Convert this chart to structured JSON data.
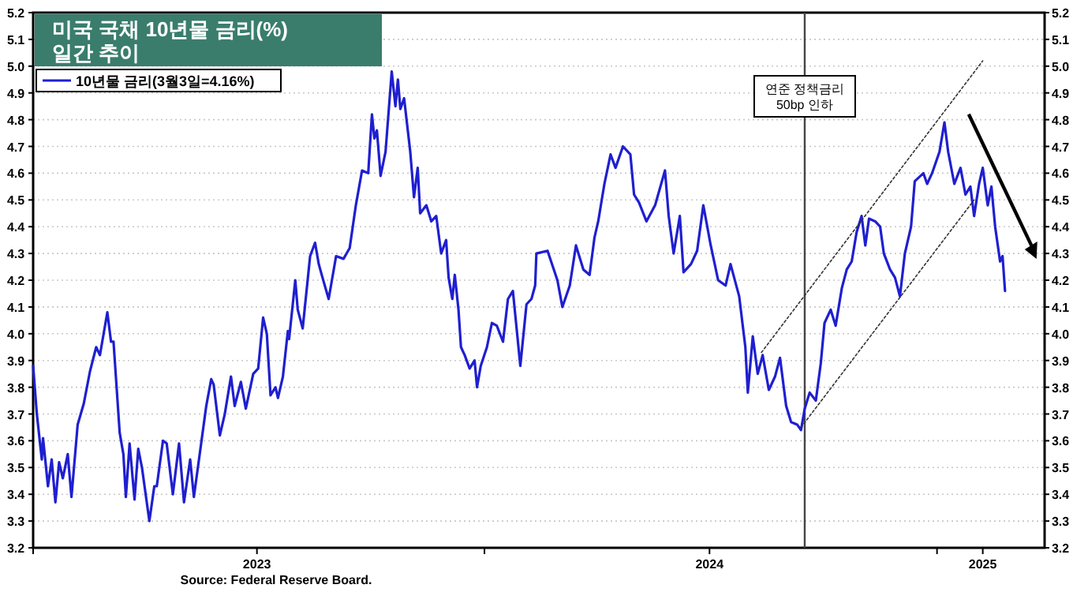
{
  "chart_data": {
    "type": "line",
    "title": "미국 국채 10년물 금리(%)",
    "subtitle": "일간 추이",
    "xlim": [
      "2023-01-01",
      "2025-03-29"
    ],
    "xticks": [
      {
        "value": "2023-01-01",
        "label": null
      },
      {
        "value": "2023-07-01",
        "label": "2023"
      },
      {
        "value": "2024-01-01",
        "label": null
      },
      {
        "value": "2024-07-01",
        "label": "2024"
      },
      {
        "value": "2025-01-01",
        "label": null
      },
      {
        "value": "2025-02-07",
        "label": "2025"
      }
    ],
    "ylim": [
      3.2,
      5.2
    ],
    "yticks": [
      3.2,
      3.3,
      3.4,
      3.5,
      3.6,
      3.7,
      3.8,
      3.9,
      {
        "value": 4,
        "label": "4.0"
      },
      4.1,
      4.2,
      4.3,
      4.4,
      4.5,
      4.6,
      4.7,
      4.8,
      4.9,
      {
        "value": 5,
        "label": "5.0"
      },
      5.1,
      5.2
    ],
    "y2lim": [
      3.2,
      5.2
    ],
    "y2ticks": [
      3.2,
      3.3,
      3.4,
      3.5,
      3.6,
      3.7,
      3.8,
      3.9,
      {
        "value": 4,
        "label": "4.0"
      },
      4.1,
      4.2,
      4.3,
      4.4,
      4.5,
      4.6,
      4.7,
      4.8,
      4.9,
      {
        "value": 5,
        "label": "5.0"
      },
      5.1,
      5.2
    ],
    "grid": "y",
    "legend": "top left",
    "series": [
      {
        "name": "10년물 금리(3월3일=4.16%)",
        "color": "#1f1fd0",
        "x": [
          "2023-01-01",
          "2023-01-04",
          "2023-01-08",
          "2023-01-09",
          "2023-01-13",
          "2023-01-16",
          "2023-01-19",
          "2023-01-22",
          "2023-01-25",
          "2023-01-29",
          "2023-02-01",
          "2023-02-06",
          "2023-02-11",
          "2023-02-16",
          "2023-02-21",
          "2023-02-24",
          "2023-03-02",
          "2023-03-05",
          "2023-03-07",
          "2023-03-12",
          "2023-03-15",
          "2023-03-17",
          "2023-03-20",
          "2023-03-24",
          "2023-03-27",
          "2023-03-30",
          "2023-04-05",
          "2023-04-09",
          "2023-04-11",
          "2023-04-16",
          "2023-04-19",
          "2023-04-24",
          "2023-04-29",
          "2023-05-03",
          "2023-05-08",
          "2023-05-11",
          "2023-05-16",
          "2023-05-21",
          "2023-05-25",
          "2023-05-27",
          "2023-06-01",
          "2023-06-05",
          "2023-06-10",
          "2023-06-13",
          "2023-06-18",
          "2023-06-22",
          "2023-06-28",
          "2023-07-02",
          "2023-07-06",
          "2023-07-09",
          "2023-07-12",
          "2023-07-16",
          "2023-07-18",
          "2023-07-22",
          "2023-07-26",
          "2023-07-27",
          "2023-08-01",
          "2023-08-03",
          "2023-08-07",
          "2023-08-13",
          "2023-08-17",
          "2023-08-20",
          "2023-08-23",
          "2023-08-28",
          "2023-09-03",
          "2023-09-09",
          "2023-09-14",
          "2023-09-19",
          "2023-09-24",
          "2023-09-29",
          "2023-10-02",
          "2023-10-04",
          "2023-10-06",
          "2023-10-09",
          "2023-10-13",
          "2023-10-18",
          "2023-10-21",
          "2023-10-23",
          "2023-10-25",
          "2023-10-28",
          "2023-11-02",
          "2023-11-05",
          "2023-11-08",
          "2023-11-10",
          "2023-11-15",
          "2023-11-19",
          "2023-11-23",
          "2023-11-27",
          "2023-12-01",
          "2023-12-03",
          "2023-12-06",
          "2023-12-08",
          "2023-12-11",
          "2023-12-13",
          "2023-12-16",
          "2023-12-20",
          "2023-12-24",
          "2023-12-26",
          "2023-12-29",
          "2024-01-03",
          "2024-01-07",
          "2024-01-11",
          "2024-01-16",
          "2024-01-20",
          "2024-01-24",
          "2024-01-30",
          "2024-02-04",
          "2024-02-08",
          "2024-02-11",
          "2024-02-12",
          "2024-02-21",
          "2024-02-29",
          "2024-03-04",
          "2024-03-10",
          "2024-03-15",
          "2024-03-21",
          "2024-03-26",
          "2024-03-30",
          "2024-04-02",
          "2024-04-07",
          "2024-04-12",
          "2024-04-16",
          "2024-04-22",
          "2024-04-28",
          "2024-05-01",
          "2024-05-05",
          "2024-05-11",
          "2024-05-18",
          "2024-05-26",
          "2024-05-29",
          "2024-06-02",
          "2024-06-07",
          "2024-06-10",
          "2024-06-16",
          "2024-06-21",
          "2024-06-26",
          "2024-07-02",
          "2024-07-08",
          "2024-07-14",
          "2024-07-18",
          "2024-07-25",
          "2024-07-30",
          "2024-08-01",
          "2024-08-05",
          "2024-08-09",
          "2024-08-13",
          "2024-08-18",
          "2024-08-23",
          "2024-08-27",
          "2024-09-01",
          "2024-09-05",
          "2024-09-10",
          "2024-09-13",
          "2024-09-16",
          "2024-09-20",
          "2024-09-25",
          "2024-09-29",
          "2024-10-02",
          "2024-10-07",
          "2024-10-11",
          "2024-10-16",
          "2024-10-20",
          "2024-10-24",
          "2024-10-28",
          "2024-11-01",
          "2024-11-04",
          "2024-11-07",
          "2024-11-12",
          "2024-11-16",
          "2024-11-19",
          "2024-11-24",
          "2024-11-28",
          "2024-12-02",
          "2024-12-06",
          "2024-12-11",
          "2024-12-14",
          "2024-12-21",
          "2024-12-24",
          "2024-12-28",
          "2025-01-03",
          "2025-01-07",
          "2025-01-10",
          "2025-01-15",
          "2025-01-20",
          "2025-01-24",
          "2025-01-28",
          "2025-01-31",
          "2025-02-04",
          "2025-02-07",
          "2025-02-11",
          "2025-02-14",
          "2025-02-17",
          "2025-02-21",
          "2025-02-23",
          "2025-02-25"
        ],
        "values": [
          3.88,
          3.7,
          3.53,
          3.61,
          3.43,
          3.53,
          3.37,
          3.52,
          3.46,
          3.55,
          3.39,
          3.66,
          3.74,
          3.86,
          3.95,
          3.92,
          4.08,
          3.97,
          3.97,
          3.63,
          3.55,
          3.39,
          3.59,
          3.38,
          3.57,
          3.5,
          3.3,
          3.43,
          3.43,
          3.6,
          3.59,
          3.4,
          3.59,
          3.37,
          3.53,
          3.39,
          3.56,
          3.73,
          3.83,
          3.81,
          3.62,
          3.7,
          3.84,
          3.73,
          3.82,
          3.72,
          3.85,
          3.87,
          4.06,
          4.0,
          3.77,
          3.8,
          3.76,
          3.84,
          4.01,
          3.98,
          4.2,
          4.09,
          4.02,
          4.29,
          4.34,
          4.26,
          4.21,
          4.13,
          4.29,
          4.28,
          4.32,
          4.48,
          4.61,
          4.6,
          4.82,
          4.73,
          4.76,
          4.59,
          4.68,
          4.98,
          4.85,
          4.95,
          4.84,
          4.88,
          4.68,
          4.51,
          4.62,
          4.45,
          4.48,
          4.42,
          4.44,
          4.3,
          4.35,
          4.21,
          4.13,
          4.22,
          4.09,
          3.95,
          3.92,
          3.87,
          3.9,
          3.8,
          3.88,
          3.95,
          4.04,
          4.03,
          3.97,
          4.13,
          4.16,
          3.88,
          4.11,
          4.13,
          4.18,
          4.3,
          4.31,
          4.2,
          4.1,
          4.18,
          4.33,
          4.24,
          4.22,
          4.36,
          4.42,
          4.56,
          4.67,
          4.62,
          4.7,
          4.67,
          4.52,
          4.49,
          4.42,
          4.48,
          4.61,
          4.44,
          4.3,
          4.44,
          4.23,
          4.26,
          4.31,
          4.48,
          4.33,
          4.2,
          4.18,
          4.26,
          4.14,
          3.95,
          3.78,
          3.99,
          3.85,
          3.92,
          3.79,
          3.84,
          3.91,
          3.73,
          3.67,
          3.66,
          3.64,
          3.72,
          3.78,
          3.75,
          3.89,
          4.04,
          4.09,
          4.03,
          4.17,
          4.24,
          4.27,
          4.38,
          4.44,
          4.33,
          4.43,
          4.42,
          4.4,
          4.3,
          4.24,
          4.21,
          4.14,
          4.3,
          4.4,
          4.57,
          4.6,
          4.56,
          4.6,
          4.68,
          4.79,
          4.68,
          4.56,
          4.62,
          4.52,
          4.55,
          4.44,
          4.56,
          4.62,
          4.48,
          4.55,
          4.4,
          4.27,
          4.29,
          4.16
        ]
      },
      {
        "type": "line",
        "color": "#333333",
        "line_style": "dotted",
        "x": [
          "2024-08-12",
          "2025-02-07"
        ],
        "values": [
          3.93,
          5.02
        ]
      },
      {
        "type": "line",
        "color": "#333333",
        "line_style": "dotted",
        "x": [
          "2024-09-13",
          "2025-01-31"
        ],
        "values": [
          3.65,
          4.5
        ]
      }
    ],
    "ref_lines": [
      {
        "axis": "x",
        "value": "2024-09-16",
        "label": "연준 정책금리 50bp 인하",
        "color": "#444444"
      }
    ],
    "annotations": [
      "Source: Federal Reserve Board."
    ]
  }
}
